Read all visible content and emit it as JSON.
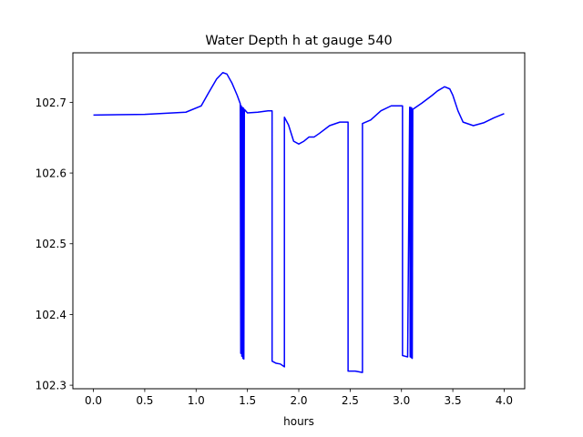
{
  "chart_data": {
    "type": "line",
    "title": "Water Depth h at gauge 540",
    "xlabel": "hours",
    "ylabel": "",
    "xlim": [
      -0.2,
      4.2
    ],
    "ylim": [
      102.295,
      102.77
    ],
    "x_ticks": [
      0.0,
      0.5,
      1.0,
      1.5,
      2.0,
      2.5,
      3.0,
      3.5,
      4.0
    ],
    "x_tick_labels": [
      "0.0",
      "0.5",
      "1.0",
      "1.5",
      "2.0",
      "2.5",
      "3.0",
      "3.5",
      "4.0"
    ],
    "y_ticks": [
      102.3,
      102.4,
      102.5,
      102.6,
      102.7
    ],
    "y_tick_labels": [
      "102.3",
      "102.4",
      "102.5",
      "102.6",
      "102.7"
    ],
    "grid": false,
    "series": [
      {
        "color": "#0000ff",
        "x": [
          0.0,
          0.5,
          0.9,
          1.05,
          1.12,
          1.2,
          1.26,
          1.3,
          1.35,
          1.4,
          1.43,
          1.435,
          1.44,
          1.445,
          1.45,
          1.455,
          1.46,
          1.465,
          1.47,
          1.5,
          1.6,
          1.7,
          1.74,
          1.74,
          1.78,
          1.82,
          1.86,
          1.86,
          1.9,
          1.95,
          2.0,
          2.05,
          2.1,
          2.15,
          2.2,
          2.3,
          2.4,
          2.48,
          2.48,
          2.55,
          2.62,
          2.62,
          2.7,
          2.8,
          2.9,
          2.92,
          3.01,
          3.01,
          3.06,
          3.08,
          3.085,
          3.09,
          3.095,
          3.1,
          3.105,
          3.11,
          3.2,
          3.3,
          3.35,
          3.42,
          3.47,
          3.5,
          3.55,
          3.6,
          3.7,
          3.8,
          3.9,
          4.0
        ],
        "y": [
          102.682,
          102.683,
          102.686,
          102.695,
          102.713,
          102.733,
          102.742,
          102.74,
          102.727,
          102.71,
          102.698,
          102.345,
          102.695,
          102.341,
          102.693,
          102.338,
          102.692,
          102.337,
          102.69,
          102.685,
          102.686,
          102.688,
          102.688,
          102.334,
          102.331,
          102.33,
          102.326,
          102.679,
          102.668,
          102.645,
          102.641,
          102.645,
          102.651,
          102.651,
          102.656,
          102.667,
          102.672,
          102.672,
          102.32,
          102.32,
          102.318,
          102.67,
          102.675,
          102.688,
          102.695,
          102.695,
          102.695,
          102.342,
          102.34,
          102.693,
          102.34,
          102.693,
          102.339,
          102.692,
          102.338,
          102.69,
          102.699,
          102.71,
          102.716,
          102.722,
          102.719,
          102.71,
          102.688,
          102.672,
          102.667,
          102.671,
          102.678,
          102.684
        ]
      }
    ]
  }
}
